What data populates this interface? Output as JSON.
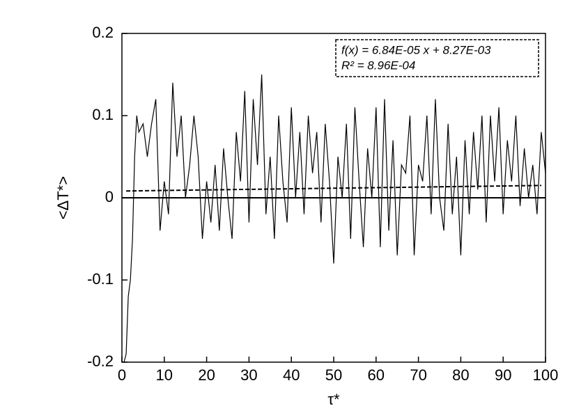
{
  "chart_data": {
    "type": "line",
    "x_label": "τ*",
    "y_label": "<ΔT*>",
    "annotations": [
      "f(x) = 6.84E-05 x + 8.27E-03",
      "R² = 8.96E-04"
    ],
    "xlim": [
      0,
      100
    ],
    "ylim": [
      -0.2,
      0.2
    ],
    "xticks": [
      0,
      10,
      20,
      30,
      40,
      50,
      60,
      70,
      80,
      90,
      100
    ],
    "yticks": [
      -0.2,
      -0.1,
      0,
      0.1,
      0.2
    ],
    "reference_line": 0,
    "fit_line": {
      "x": [
        1,
        99
      ],
      "values": [
        0.0083,
        0.015
      ]
    },
    "x": [
      0.5,
      1,
      1.5,
      2,
      2.5,
      3,
      3.5,
      4,
      5,
      6,
      7,
      8,
      9,
      10,
      11,
      12,
      13,
      14,
      15,
      16,
      17,
      18,
      19,
      20,
      21,
      22,
      23,
      24,
      25,
      26,
      27,
      28,
      29,
      30,
      31,
      32,
      33,
      34,
      35,
      36,
      37,
      38,
      39,
      40,
      41,
      42,
      43,
      44,
      45,
      46,
      47,
      48,
      49,
      50,
      51,
      52,
      53,
      54,
      55,
      56,
      57,
      58,
      59,
      60,
      61,
      62,
      63,
      64,
      65,
      66,
      67,
      68,
      69,
      70,
      71,
      72,
      73,
      74,
      75,
      76,
      77,
      78,
      79,
      80,
      81,
      82,
      83,
      84,
      85,
      86,
      87,
      88,
      89,
      90,
      91,
      92,
      93,
      94,
      95,
      96,
      97,
      98,
      99,
      100
    ],
    "series": [
      {
        "name": "<ΔT*>",
        "color": "#000000",
        "values": [
          -0.2,
          -0.19,
          -0.12,
          -0.1,
          -0.05,
          0.05,
          0.1,
          0.08,
          0.09,
          0.05,
          0.09,
          0.12,
          -0.04,
          0.02,
          -0.02,
          0.14,
          0.05,
          0.1,
          0.0,
          0.04,
          0.1,
          0.05,
          -0.05,
          0.02,
          -0.03,
          0.04,
          -0.04,
          0.06,
          0.0,
          -0.05,
          0.08,
          0.02,
          0.13,
          -0.03,
          0.12,
          0.04,
          0.15,
          -0.02,
          0.05,
          -0.05,
          0.1,
          0.02,
          -0.03,
          0.11,
          0.0,
          0.08,
          -0.02,
          0.1,
          0.03,
          0.08,
          -0.03,
          0.09,
          0.02,
          -0.08,
          0.05,
          0.0,
          0.09,
          -0.05,
          0.11,
          0.02,
          -0.06,
          0.06,
          0.0,
          0.11,
          -0.06,
          0.12,
          -0.04,
          0.07,
          -0.07,
          0.04,
          0.03,
          0.1,
          -0.07,
          0.04,
          0.02,
          0.1,
          -0.02,
          0.12,
          0.0,
          -0.04,
          0.09,
          -0.02,
          0.05,
          -0.07,
          0.07,
          -0.02,
          0.08,
          0.01,
          0.1,
          -0.03,
          0.1,
          0.02,
          0.11,
          -0.02,
          0.07,
          0.02,
          0.1,
          -0.01,
          0.06,
          0.0,
          0.04,
          -0.02,
          0.08,
          0.03
        ]
      }
    ]
  }
}
